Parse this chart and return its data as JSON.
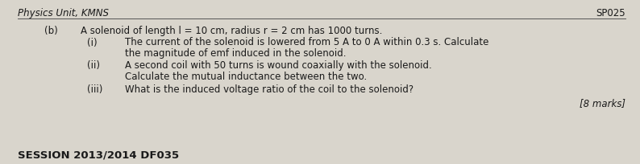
{
  "bg_color": "#d9d5cc",
  "header_left": "Physics Unit, KMNS",
  "header_right": "SP025",
  "header_fontsize": 8.5,
  "label_b": "(b)",
  "main_text": "A solenoid of length l = 10 cm, radius r = 2 cm has 1000 turns.",
  "items": [
    {
      "label": "(i)",
      "lines": [
        "The current of the solenoid is lowered from 5 A to 0 A within 0.3 s. Calculate",
        "the magnitude of emf induced in the solenoid."
      ]
    },
    {
      "label": "(ii)",
      "lines": [
        "A second coil with 50 turns is wound coaxially with the solenoid.",
        "Calculate the mutual inductance between the two."
      ]
    },
    {
      "label": "(iii)",
      "lines": [
        "What is the induced voltage ratio of the coil to the solenoid?"
      ]
    }
  ],
  "marks_text": "[8 marks]",
  "footer_text": "SESSION 2013/2014 DF035",
  "text_color": "#1a1a1a",
  "line_color": "#555555",
  "fontsize": 8.5,
  "footer_fontsize": 9.5,
  "fig_width": 7.94,
  "fig_height": 2.05,
  "dpi": 100
}
